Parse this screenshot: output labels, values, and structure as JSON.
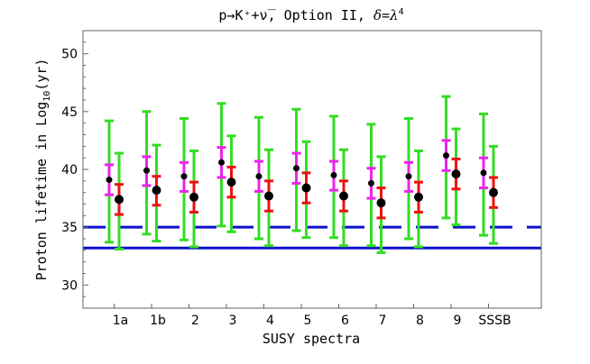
{
  "chart_data": {
    "type": "scatter",
    "title": "p→K⁺+ν̅, Option II, δ=λ⁴",
    "title_parts": {
      "main": "p→K⁺+ν̅, Option II, ",
      "delta": "δ",
      "eq": "=",
      "lambda": "λ",
      "exp": "4"
    },
    "xlabel": "SUSY spectra",
    "ylabel": "Proton lifetime in Log",
    "ylabel_sub": "10",
    "ylabel_unit": "(yr)",
    "ylim": [
      28,
      52
    ],
    "yticks": [
      30,
      35,
      40,
      45,
      50
    ],
    "categories": [
      "1a",
      "1b",
      "2",
      "3",
      "4",
      "5",
      "6",
      "7",
      "8",
      "9",
      "SSSB"
    ],
    "colors": {
      "green": "#33dd22",
      "magenta": "#ee22ee",
      "red": "#ee1111",
      "point": "#000000",
      "limit": "#0a10cc",
      "frame": "#666666"
    },
    "series": [
      {
        "central": [
          39.1,
          39.9,
          39.4,
          40.6,
          39.4,
          40.1,
          39.5,
          38.8,
          39.4,
          41.2,
          39.7
        ],
        "inner": [
          [
            37.8,
            40.4
          ],
          [
            38.6,
            41.1
          ],
          [
            38.1,
            40.6
          ],
          [
            39.3,
            41.9
          ],
          [
            38.1,
            40.7
          ],
          [
            38.8,
            41.4
          ],
          [
            38.2,
            40.7
          ],
          [
            37.5,
            40.1
          ],
          [
            38.1,
            40.6
          ],
          [
            39.9,
            42.5
          ],
          [
            38.4,
            41.0
          ]
        ],
        "outer": [
          [
            33.7,
            44.2
          ],
          [
            34.4,
            45.0
          ],
          [
            33.9,
            44.4
          ],
          [
            35.1,
            45.7
          ],
          [
            34.0,
            44.5
          ],
          [
            34.7,
            45.2
          ],
          [
            34.1,
            44.6
          ],
          [
            33.4,
            43.9
          ],
          [
            34.0,
            44.4
          ],
          [
            35.8,
            46.3
          ],
          [
            34.3,
            44.8
          ]
        ]
      },
      {
        "central": [
          37.4,
          38.2,
          37.6,
          38.9,
          37.7,
          38.4,
          37.7,
          37.1,
          37.6,
          39.6,
          38.0
        ],
        "inner": [
          [
            36.1,
            38.7
          ],
          [
            36.9,
            39.4
          ],
          [
            36.3,
            38.9
          ],
          [
            37.6,
            40.2
          ],
          [
            36.4,
            39.0
          ],
          [
            37.1,
            39.7
          ],
          [
            36.4,
            39.0
          ],
          [
            35.8,
            38.4
          ],
          [
            36.3,
            38.9
          ],
          [
            38.3,
            40.9
          ],
          [
            36.7,
            39.3
          ]
        ],
        "outer": [
          [
            33.1,
            41.4
          ],
          [
            33.8,
            42.1
          ],
          [
            33.3,
            41.6
          ],
          [
            34.6,
            42.9
          ],
          [
            33.4,
            41.7
          ],
          [
            34.1,
            42.4
          ],
          [
            33.4,
            41.7
          ],
          [
            32.8,
            41.1
          ],
          [
            33.3,
            41.6
          ],
          [
            35.2,
            43.5
          ],
          [
            33.6,
            42.0
          ]
        ]
      }
    ],
    "limits": [
      {
        "value": 35.0,
        "style": "dashed"
      },
      {
        "value": 33.2,
        "style": "solid"
      }
    ]
  }
}
